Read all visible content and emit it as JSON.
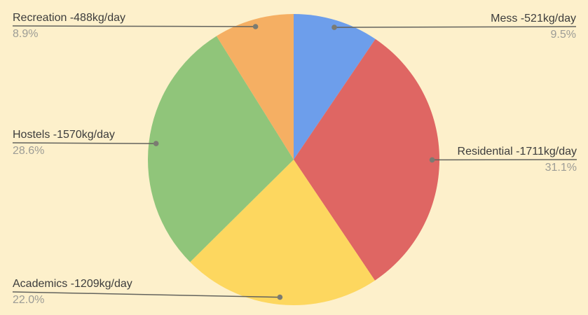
{
  "chart_data": {
    "type": "pie",
    "title": "",
    "categories": [
      "Mess",
      "Residential",
      "Academics",
      "Hostels",
      "Recreation"
    ],
    "values": [
      521,
      1711,
      1209,
      1570,
      488
    ],
    "unit": "kg/day",
    "slice_labels": [
      "Mess -521kg/day",
      "Residential -1711kg/day",
      "Academics -1209kg/day",
      "Hostels -1570kg/day",
      "Recreation -488kg/day"
    ],
    "percent_labels": [
      "9.5%",
      "31.1%",
      "22.0%",
      "28.6%",
      "8.9%"
    ],
    "percents": [
      9.5,
      31.1,
      22.0,
      28.6,
      8.9
    ],
    "colors": [
      "#6D9EEB",
      "#DF6663",
      "#FDD75F",
      "#90C57A",
      "#F5AF63"
    ],
    "background": "#FDF0CB",
    "leader_line_color": "#63635D",
    "anchor_dot_color": "#7B7B72",
    "label_color": "#3C3C3C",
    "percent_color": "#9C9C96",
    "start_angle_deg": 0,
    "direction": "clockwise",
    "legend_position": "outside-callouts",
    "grid": false
  }
}
